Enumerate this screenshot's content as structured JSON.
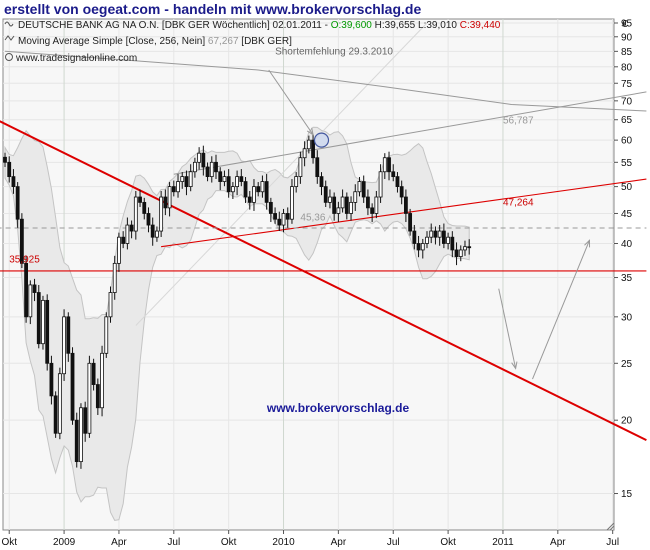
{
  "headline": "erstellt von oegeat.com - handeln mit www.brokervorschlag.de",
  "chart_data": {
    "type": "candlestick",
    "symbol_line": {
      "name": "DEUTSCHE BANK AG NA O.N. [DBK GER  Wöchentlich] 02.01.2011",
      "o_label": "O:39,600",
      "h_label": "H:39,655",
      "l_label": "L:39,010",
      "c_label": "C:39,440"
    },
    "indicator_line": {
      "name": "Moving Average Simple [Close, 256, Nein]",
      "value": "67,267",
      "suffix": "[DBK GER]"
    },
    "website": "www.tradesignalonline.com",
    "watermark": "www.brokervorschlag.de",
    "currency_symbol": "€",
    "y_scale": "log",
    "y_ticks": [
      15,
      20,
      25,
      30,
      35,
      40,
      45,
      50,
      55,
      60,
      65,
      70,
      75,
      80,
      85,
      90,
      95
    ],
    "x_labels": [
      {
        "label": "Okt",
        "t": 1
      },
      {
        "label": "2009",
        "t": 14
      },
      {
        "label": "Apr",
        "t": 27
      },
      {
        "label": "Jul",
        "t": 40
      },
      {
        "label": "Okt",
        "t": 53
      },
      {
        "label": "2010",
        "t": 66
      },
      {
        "label": "Apr",
        "t": 79
      },
      {
        "label": "Jul",
        "t": 92
      },
      {
        "label": "Okt",
        "t": 105
      },
      {
        "label": "2011",
        "t": 118
      },
      {
        "label": "Apr",
        "t": 131
      },
      {
        "label": "Jul",
        "t": 144
      }
    ],
    "closes": [
      55,
      52,
      50,
      44,
      37,
      30,
      34,
      33,
      27,
      32,
      25,
      22,
      19,
      24,
      30,
      26,
      20,
      17,
      21,
      19,
      25,
      23,
      21,
      26,
      30,
      33,
      37,
      41,
      40,
      43,
      42,
      48,
      47,
      45,
      43,
      41,
      42,
      48,
      46,
      50,
      49,
      51,
      52,
      50,
      53,
      55,
      57,
      54,
      52,
      55,
      53,
      51,
      52,
      49,
      50,
      52,
      51,
      48,
      47,
      50,
      49,
      51,
      47,
      45,
      44,
      43,
      45,
      44,
      50,
      52,
      56,
      58,
      60,
      56,
      52,
      50,
      47,
      48,
      45,
      46,
      48,
      45,
      47,
      49,
      51,
      48,
      46,
      45,
      48,
      53,
      56,
      53,
      52,
      50,
      48,
      45,
      42,
      40,
      39,
      40,
      41,
      42,
      41,
      42,
      40,
      41,
      39,
      38,
      39,
      39.5,
      39.4
    ],
    "lines": [
      {
        "name": "downtrend",
        "color": "#dd0000",
        "points": [
          [
            -2,
            65
          ],
          [
            152,
            18.5
          ]
        ]
      },
      {
        "name": "support",
        "color": "#dd0000",
        "points": [
          [
            -2,
            35.925
          ],
          [
            152,
            35.925
          ]
        ]
      },
      {
        "name": "rising-channel",
        "color": "#dd0000",
        "points": [
          [
            37,
            39.5
          ],
          [
            152,
            51.5
          ]
        ]
      },
      {
        "name": "upper-channel",
        "color": "#999999",
        "points": [
          [
            40,
            52.5
          ],
          [
            152,
            72.5
          ]
        ]
      },
      {
        "name": "moving-average",
        "color": "#999999",
        "points": [
          [
            0,
            85
          ],
          [
            30,
            82
          ],
          [
            60,
            79
          ],
          [
            90,
            74
          ],
          [
            120,
            69
          ],
          [
            152,
            67.27
          ]
        ]
      },
      {
        "name": "dashed-level",
        "color": "#999999",
        "dashed": true,
        "points": [
          [
            -2,
            42.5
          ],
          [
            152,
            42.5
          ]
        ]
      }
    ],
    "annotations": [
      {
        "text": "Shortemfehlung 29.3.2010",
        "t": 64,
        "v": 84,
        "color": "#666666"
      },
      {
        "text": "56,787",
        "t": 118,
        "v": 64,
        "color": "#999999"
      },
      {
        "text": "47,264",
        "t": 118,
        "v": 46.4,
        "color": "#cc0000"
      },
      {
        "text": "35,925",
        "t": 1,
        "v": 37.1,
        "color": "#cc0000"
      },
      {
        "text": "45,36",
        "t": 70,
        "v": 43.8,
        "color": "#999999"
      }
    ]
  }
}
